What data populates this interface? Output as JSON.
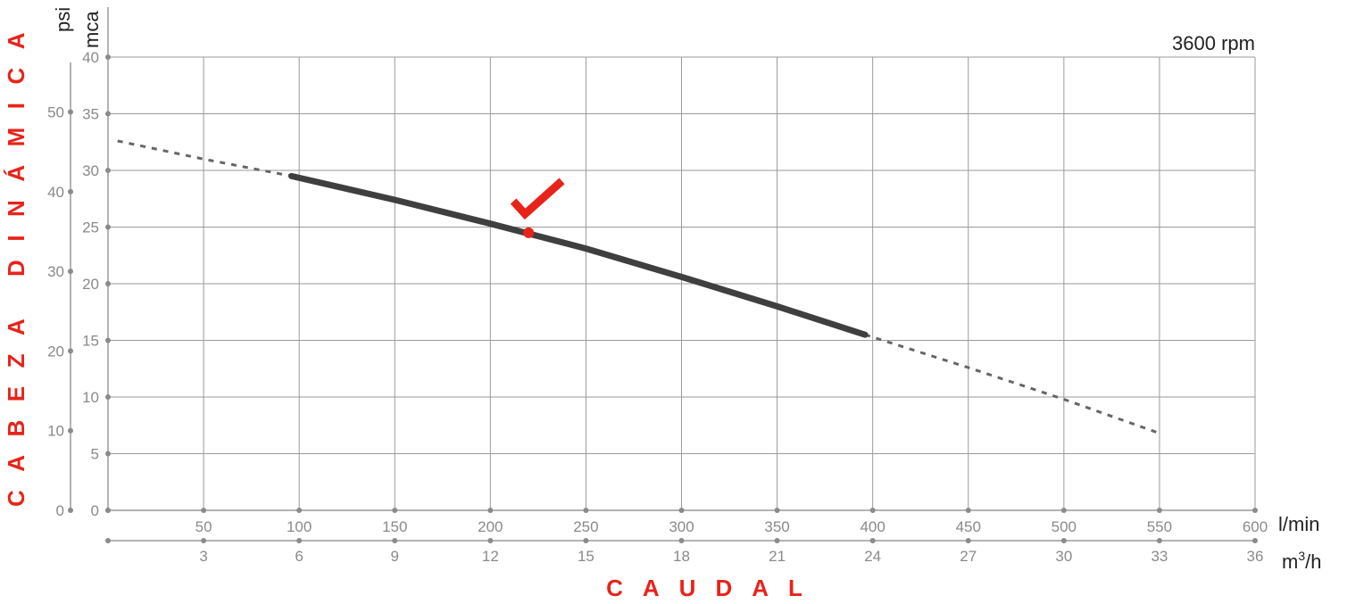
{
  "chart_data": {
    "type": "line",
    "rpm_label": "3600 rpm",
    "y_axis_title": "CABEZA DINÁMICA",
    "x_axis_title": "CAUDAL",
    "y_units": {
      "primary": "mca",
      "secondary": "psi"
    },
    "x_units": {
      "primary": "l/min",
      "secondary_base": "m",
      "secondary_sup": "3",
      "secondary_rest": "/h"
    },
    "x_lmin_ticks": [
      "50",
      "100",
      "150",
      "200",
      "250",
      "300",
      "350",
      "400",
      "450",
      "500",
      "550",
      "600"
    ],
    "x_m3h_ticks": [
      "3",
      "6",
      "9",
      "12",
      "15",
      "18",
      "21",
      "24",
      "27",
      "30",
      "33",
      "36"
    ],
    "y_mca_ticks": [
      "0",
      "5",
      "10",
      "15",
      "20",
      "25",
      "30",
      "35",
      "40"
    ],
    "y_psi_ticks": [
      "0",
      "10",
      "20",
      "30",
      "40",
      "50"
    ],
    "xlim": [
      0,
      600
    ],
    "ylim": [
      0,
      40
    ],
    "grid": true,
    "series": [
      {
        "style": "solid",
        "x": [
          96,
          150,
          200,
          250,
          300,
          350,
          396
        ],
        "y": [
          29.5,
          27.4,
          25.3,
          23.1,
          20.6,
          18.0,
          15.5
        ]
      }
    ],
    "extrapolated": {
      "style": "dashed",
      "x": [
        5,
        50,
        96,
        396,
        450,
        500,
        550
      ],
      "y": [
        32.6,
        31.0,
        29.5,
        15.5,
        12.6,
        9.8,
        6.8
      ]
    },
    "operating_point": {
      "x": 220,
      "y": 24.5,
      "color": "#e8231a"
    },
    "colors": {
      "grid": "#9a9a9a",
      "curve": "#3f3f3f",
      "accent": "#e8231a",
      "tick": "#8a8a8a"
    }
  }
}
